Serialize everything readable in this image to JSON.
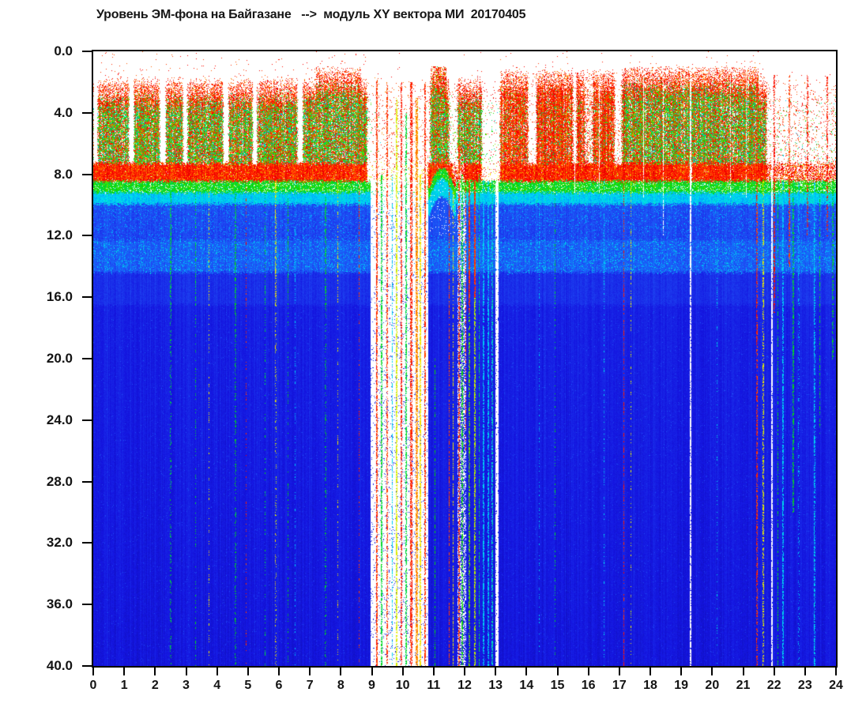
{
  "title": "Уровень ЭМ-фона на Байгазане   -->  модуль XY вектора МИ  20170405",
  "axes": {
    "y": {
      "min": 0,
      "max": 40,
      "ticks": [
        "0.0",
        "4.0",
        "8.0",
        "12.0",
        "16.0",
        "20.0",
        "24.0",
        "28.0",
        "32.0",
        "36.0",
        "40.0"
      ]
    },
    "x": {
      "min": 0,
      "max": 24,
      "ticks": [
        "0",
        "1",
        "2",
        "3",
        "4",
        "5",
        "6",
        "7",
        "8",
        "9",
        "10",
        "11",
        "12",
        "13",
        "14",
        "15",
        "16",
        "17",
        "18",
        "19",
        "20",
        "21",
        "22",
        "23",
        "24"
      ]
    }
  },
  "chart_data": {
    "type": "heatmap",
    "title": "Уровень ЭМ-фона на Байгазане   -->  модуль XY вектора МИ  20170405",
    "x_range": [
      0,
      24
    ],
    "y_range": [
      0,
      40
    ],
    "grid": false,
    "legend": "none",
    "seed": 20170405,
    "colormap": [
      [
        0.12,
        "#1010b4"
      ],
      [
        0.18,
        "#1414e0"
      ],
      [
        0.3,
        "#2050f5"
      ],
      [
        0.4,
        "#00a0ff"
      ],
      [
        0.48,
        "#00e4f0"
      ],
      [
        0.56,
        "#00d860"
      ],
      [
        0.62,
        "#00d800"
      ],
      [
        0.72,
        "#9ce800"
      ],
      [
        0.8,
        "#fff000"
      ],
      [
        0.88,
        "#ff7000"
      ],
      [
        0.95,
        "#ff0000"
      ],
      [
        1.0,
        "#d80000"
      ]
    ],
    "background_color": "#ffffff",
    "surface": {
      "surface_bottom": 7.3,
      "default_amp": 0.92,
      "amp_segments": [
        [
          0,
          0.15,
          0
        ],
        [
          1.15,
          1.32,
          0
        ],
        [
          2.15,
          2.35,
          0
        ],
        [
          2.9,
          3.05,
          0
        ],
        [
          4.2,
          4.38,
          0
        ],
        [
          5.15,
          5.3,
          0
        ],
        [
          6.6,
          6.78,
          0
        ],
        [
          8.85,
          10.88,
          0.06
        ],
        [
          11.5,
          11.78,
          0.1
        ],
        [
          12.55,
          13.15,
          0.06
        ],
        [
          14.05,
          14.32,
          0.05
        ],
        [
          15.5,
          15.62,
          0.1
        ],
        [
          15.88,
          16.15,
          0.3
        ],
        [
          16.85,
          17.08,
          0.08
        ],
        [
          21.75,
          24.01,
          0.1
        ]
      ],
      "default_green": 0.55,
      "green_segments": [
        [
          9.0,
          10.88,
          0.05
        ],
        [
          13.1,
          17.1,
          0.14
        ],
        [
          21.75,
          24.01,
          0.3
        ]
      ],
      "default_top": 1.9,
      "top_segments": [
        [
          7.2,
          8.65,
          1.15
        ],
        [
          10.9,
          11.42,
          1.05
        ],
        [
          13.15,
          17.1,
          1.35
        ],
        [
          17.1,
          21.5,
          1.1
        ]
      ]
    },
    "red_band": {
      "d0": 7.3,
      "d1": 8.45,
      "default_amp": 0.93,
      "amp_segments": [
        [
          8.85,
          10.82,
          0.03
        ],
        [
          11.6,
          11.98,
          0.45
        ],
        [
          12.55,
          13.15,
          0.05
        ],
        [
          19.28,
          19.36,
          0.25
        ],
        [
          21.78,
          24.01,
          0.5
        ]
      ]
    },
    "body": {
      "default_amp": 1,
      "amp_segments": [
        [
          8.95,
          10.82,
          0.05
        ],
        [
          11.78,
          12.06,
          0.5
        ],
        [
          13.0,
          13.1,
          0.1
        ]
      ],
      "green_band": [
        8.45,
        9.2
      ],
      "cyan_band": [
        9.2,
        9.95
      ],
      "light_band": [
        12.3,
        14.4
      ],
      "deep_start": 16.5
    },
    "arch": {
      "t0": 10.82,
      "t1": 11.72,
      "center": 11.27,
      "apex": 7.15,
      "curve": 1.6,
      "column": {
        "t0": 10.93,
        "t1": 11.42,
        "center": 11.17,
        "half": 0.26,
        "p": 0.5
      }
    },
    "streaks": [
      [
        2.5,
        0.04,
        0.6,
        8.4,
        40,
        0.5,
        1
      ],
      [
        3.3,
        0.03,
        0.6,
        8.4,
        40,
        0.45,
        1
      ],
      [
        3.75,
        0.03,
        0.78,
        8.4,
        40,
        0.4,
        1
      ],
      [
        4.6,
        0.04,
        0.6,
        8.4,
        40,
        0.5,
        1
      ],
      [
        4.95,
        0.03,
        0.92,
        8.4,
        40,
        0.35,
        1
      ],
      [
        5.55,
        0.04,
        0.6,
        8.4,
        40,
        0.45,
        1
      ],
      [
        5.9,
        0.03,
        0.78,
        8.4,
        40,
        0.4,
        1
      ],
      [
        6.3,
        0.03,
        0.6,
        8.4,
        40,
        0.45,
        1
      ],
      [
        6.52,
        0.03,
        0.45,
        8.4,
        40,
        0.5,
        1
      ],
      [
        7.5,
        0.04,
        0.6,
        8.4,
        40,
        0.45,
        1
      ],
      [
        7.9,
        0.03,
        0.78,
        8.4,
        40,
        0.4,
        1
      ],
      [
        8.6,
        0.03,
        0.92,
        2,
        40,
        0.45,
        1
      ],
      [
        9.17,
        0.06,
        0.92,
        1.8,
        40,
        0.7,
        0
      ],
      [
        9.32,
        0.04,
        0.6,
        8,
        40,
        0.65,
        0
      ],
      [
        9.5,
        0.05,
        0.92,
        2,
        40,
        0.55,
        0
      ],
      [
        9.66,
        0.04,
        0.45,
        8,
        40,
        0.6,
        0
      ],
      [
        9.8,
        0.05,
        0.78,
        3,
        40,
        0.65,
        0
      ],
      [
        9.96,
        0.04,
        0.92,
        2,
        40,
        0.55,
        0
      ],
      [
        10.12,
        0.05,
        0.6,
        4,
        40,
        0.65,
        0
      ],
      [
        10.28,
        0.06,
        0.92,
        2,
        40,
        0.65,
        0
      ],
      [
        10.45,
        0.07,
        0.86,
        3,
        40,
        0.7,
        0
      ],
      [
        10.57,
        0.05,
        0.78,
        8,
        40,
        0.75,
        0
      ],
      [
        10.72,
        0.05,
        0.92,
        2,
        40,
        0.65,
        0
      ],
      [
        11.05,
        0.03,
        0.6,
        20,
        40,
        0.45,
        0
      ],
      [
        11.5,
        0.04,
        0.92,
        7.5,
        40,
        0.55,
        0
      ],
      [
        11.62,
        0.03,
        0.78,
        9,
        40,
        0.55,
        0
      ],
      [
        11.82,
        0.04,
        0.92,
        6,
        40,
        0.55,
        0
      ],
      [
        11.93,
        0.05,
        0.6,
        8,
        40,
        0.6,
        0
      ],
      [
        12.04,
        0.04,
        0.92,
        8,
        26,
        0.55,
        0
      ],
      [
        12.16,
        0.06,
        0.92,
        8.4,
        17,
        0.8,
        0
      ],
      [
        12.16,
        0.05,
        0.7,
        17,
        40,
        0.55,
        0
      ],
      [
        12.33,
        0.07,
        0.92,
        8.4,
        16,
        0.85,
        0
      ],
      [
        12.33,
        0.06,
        0.75,
        16,
        40,
        0.65,
        0
      ],
      [
        12.47,
        0.04,
        0.55,
        8,
        40,
        0.6,
        0
      ],
      [
        12.62,
        0.05,
        0.45,
        8.4,
        40,
        0.7,
        0
      ],
      [
        12.77,
        0.05,
        0.45,
        8.4,
        40,
        0.65,
        0
      ],
      [
        12.9,
        0.04,
        0.5,
        8.4,
        40,
        0.55,
        0
      ],
      [
        13.06,
        0.05,
        -1,
        0,
        40,
        0.95,
        0
      ],
      [
        14.42,
        0.03,
        0.45,
        8.4,
        40,
        0.45,
        1
      ],
      [
        14.92,
        0.03,
        0.6,
        8.4,
        40,
        0.4,
        1
      ],
      [
        15.55,
        0.025,
        -1,
        1,
        9.2,
        0.85,
        0
      ],
      [
        16.35,
        0.025,
        -1,
        1,
        9.2,
        0.8,
        0
      ],
      [
        16.5,
        0.03,
        0.45,
        8.4,
        40,
        0.4,
        1
      ],
      [
        17.15,
        0.04,
        0.92,
        1.5,
        40,
        0.5,
        0
      ],
      [
        17.38,
        0.03,
        0.78,
        8.4,
        40,
        0.45,
        1
      ],
      [
        17.78,
        0.025,
        -1,
        1,
        9.5,
        0.8,
        0
      ],
      [
        18.42,
        0.025,
        -1,
        1,
        12,
        0.7,
        0
      ],
      [
        19.3,
        0.04,
        -1,
        0,
        40,
        0.85,
        0
      ],
      [
        20.15,
        0.03,
        0.45,
        8.4,
        40,
        0.35,
        1
      ],
      [
        20.6,
        0.025,
        -1,
        1,
        9.5,
        0.6,
        0
      ],
      [
        21.1,
        0.025,
        -1,
        1,
        9.5,
        0.6,
        0
      ],
      [
        21.45,
        0.04,
        0.92,
        1.5,
        40,
        0.5,
        0
      ],
      [
        21.65,
        0.04,
        0.78,
        8.4,
        40,
        0.5,
        0
      ],
      [
        21.92,
        0.05,
        -1,
        0,
        40,
        0.9,
        0
      ],
      [
        22.02,
        0.05,
        0.92,
        1.5,
        17,
        0.55,
        0
      ],
      [
        22.12,
        0.04,
        0.6,
        8.4,
        40,
        0.55,
        0
      ],
      [
        22.28,
        0.05,
        0.45,
        8.4,
        40,
        0.6,
        0
      ],
      [
        22.5,
        0.05,
        0.92,
        1.5,
        14,
        0.5,
        0
      ],
      [
        22.62,
        0.04,
        0.6,
        8.4,
        30,
        0.5,
        0
      ],
      [
        22.8,
        0.03,
        0.45,
        8.4,
        40,
        0.4,
        1
      ],
      [
        23.08,
        0.04,
        0.92,
        1.5,
        12,
        0.45,
        0
      ],
      [
        23.32,
        0.05,
        0.45,
        8.4,
        40,
        0.55,
        0
      ],
      [
        23.48,
        0.04,
        0.6,
        8.4,
        25,
        0.45,
        0
      ],
      [
        23.72,
        0.04,
        0.92,
        1.5,
        12,
        0.45,
        0
      ],
      [
        23.9,
        0.03,
        0.6,
        8.4,
        20,
        0.45,
        0
      ]
    ]
  }
}
